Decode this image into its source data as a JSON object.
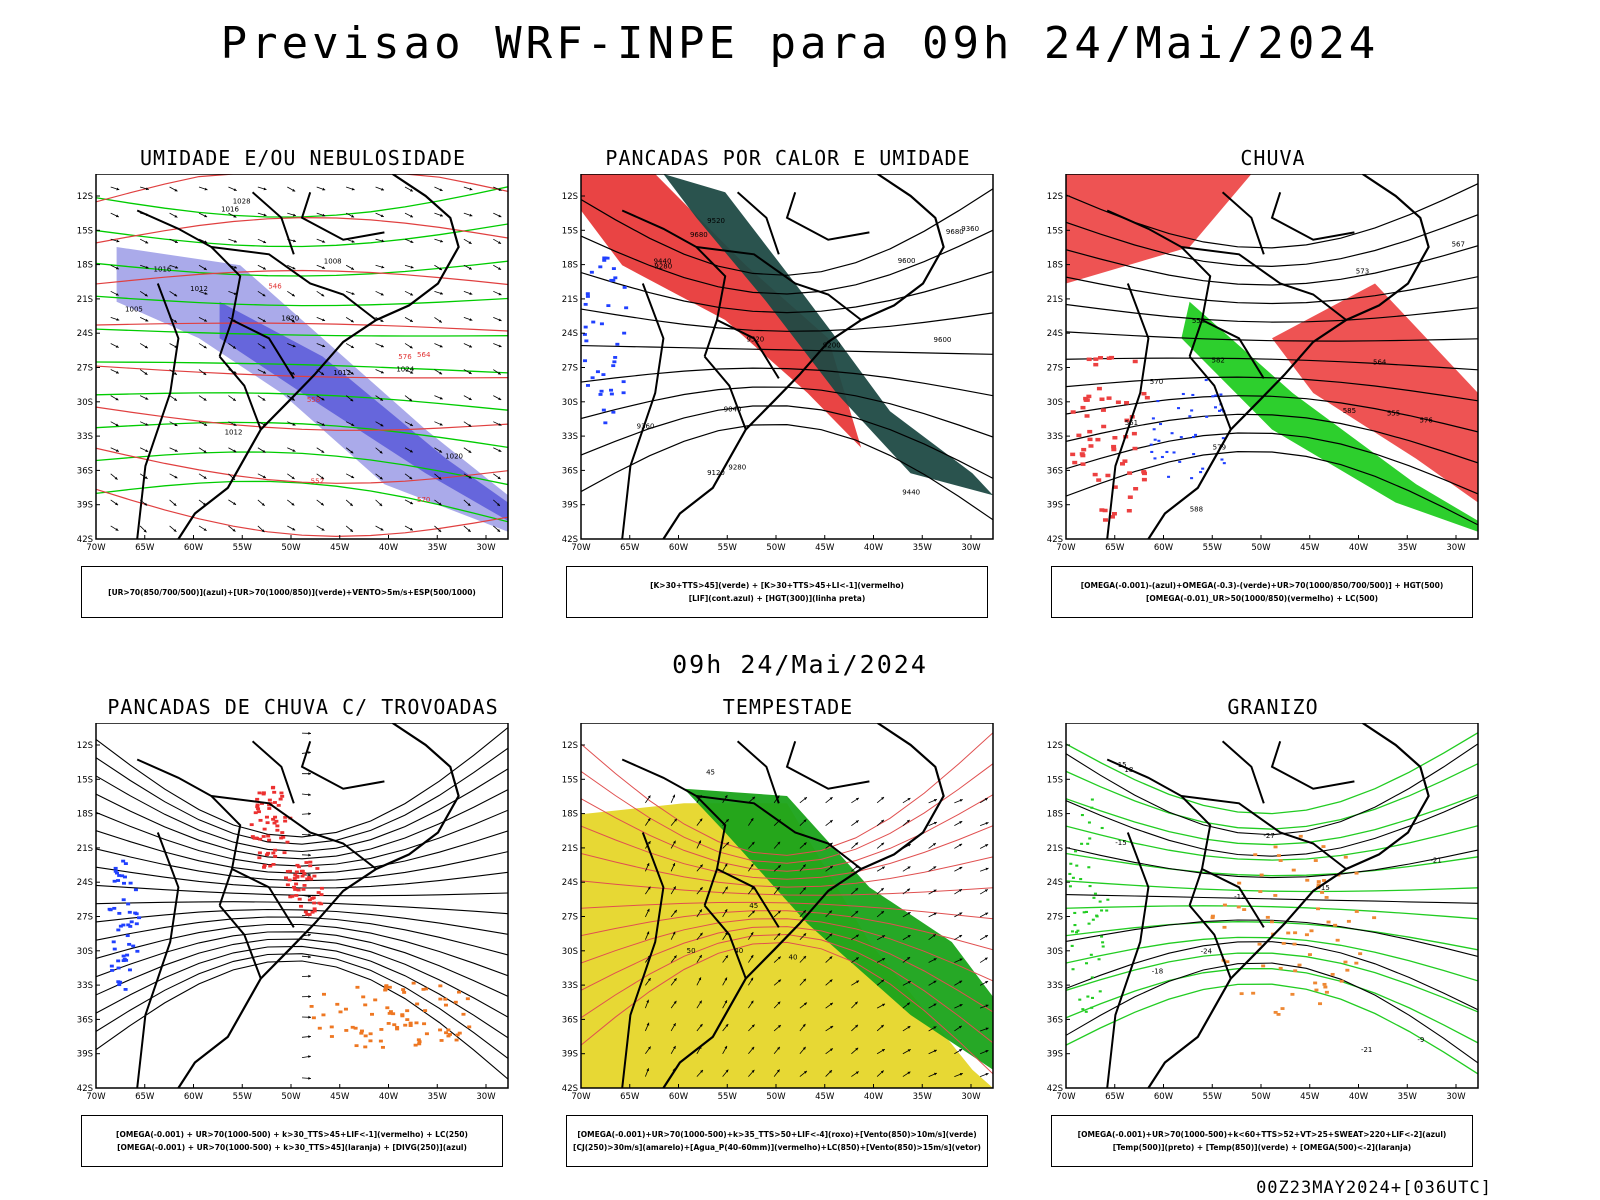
{
  "main_title": "Previsao WRF-INPE  para 09h 24/Mai/2024",
  "mid_title": "09h 24/Mai/2024",
  "footer": "00Z23MAY2024+[036UTC]",
  "lat_labels": [
    "12S",
    "15S",
    "18S",
    "21S",
    "24S",
    "27S",
    "30S",
    "33S",
    "36S",
    "39S",
    "42S"
  ],
  "lon_labels": [
    "70W",
    "65W",
    "60W",
    "55W",
    "50W",
    "45W",
    "40W",
    "35W",
    "30W"
  ],
  "panels": [
    {
      "title": "UMIDADE E/OU NEBULOSIDADE",
      "legend": [
        "[UR>70(850/700/500)](azul)+[UR>70(1000/850)](verde)+VENTO>5m/s+ESP(500/1000)"
      ],
      "contour_labels": [
        "1012",
        "1016",
        "1020",
        "1016",
        "1012",
        "1008",
        "1005",
        "1012",
        "1020",
        "1024",
        "1028",
        "576",
        "570",
        "564",
        "558",
        "552",
        "546"
      ]
    },
    {
      "title": "PANCADAS POR CALOR E UMIDADE",
      "legend": [
        "[K>30+TTS>45](verde) + [K>30+TTS>45+LI<-1](vermelho)",
        "[LIF](cont.azul) + [HGT(300)](linha preta)"
      ],
      "contour_labels": [
        "9680",
        "9600",
        "9520",
        "9440",
        "9360",
        "9280",
        "9200",
        "9120",
        "9040",
        "9680",
        "9600",
        "9520",
        "9440",
        "9360",
        "9280"
      ]
    },
    {
      "title": "CHUVA",
      "legend": [
        "[OMEGA(-0.001)-(azul)+OMEGA(-0.3)-(verde)+UR>70(1000/850/700/500)] + HGT(500)",
        "[OMEGA(-0.01)_UR>50(1000/850)(vermelho) + LC(500)"
      ],
      "contour_labels": [
        "588",
        "585",
        "582",
        "579",
        "576",
        "573",
        "570",
        "567",
        "564",
        "561",
        "558",
        "555"
      ]
    },
    {
      "title": "PANCADAS DE CHUVA C/ TROVOADAS",
      "legend": [
        "[OMEGA(-0.001) + UR>70(1000-500) + k>30_TTS>45+LIF<-1](vermelho) + LC(250)",
        "[OMEGA(-0.001) + UR>70(1000-500) + k>30_TTS>45](laranja) + [DIVG(250)](azul)"
      ],
      "contour_labels": []
    },
    {
      "title": "TEMPESTADE",
      "legend": [
        "[OMEGA(-0.001)+UR>70(1000-500)+k>35_TTS>50+LIF<-4](roxo)+[Vento(850)>10m/s](verde)",
        "[CJ(250)>30m/s](amarelo)+[Agua_P(40-60mm)](vermelho)+LC(850)+[Vento(850)>15m/s](vetor)"
      ],
      "contour_labels": [
        "40",
        "45",
        "50",
        "45",
        "40"
      ]
    },
    {
      "title": "GRANIZO",
      "legend": [
        "[OMEGA(-0.001)+UR>70(1000-500)+k<60+TTS>52+VT>25+SWEAT>220+LIF<-2](azul)",
        "[Temp(500)](preto) + [Temp(850)](verde) + [OMEGA(500)<-2](laranja)"
      ],
      "contour_labels": [
        "-12",
        "-15",
        "-18",
        "-21",
        "-24",
        "-27",
        "-9",
        "15",
        "18",
        "-15",
        "-21"
      ]
    }
  ]
}
